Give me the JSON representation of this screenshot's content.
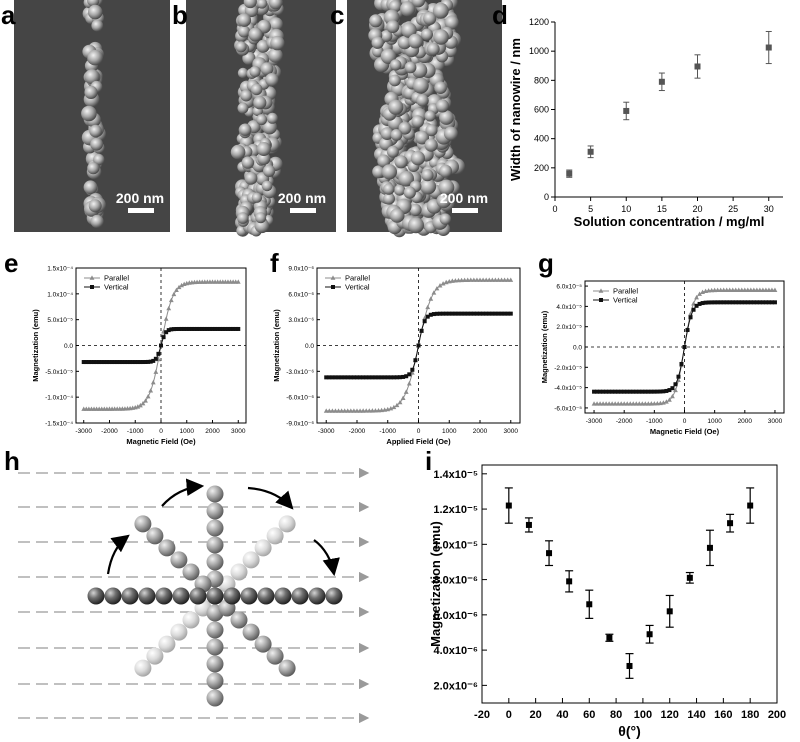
{
  "panels": {
    "a": {
      "label": "a",
      "scale_bar": "200 nm"
    },
    "b": {
      "label": "b",
      "scale_bar": "200 nm"
    },
    "c": {
      "label": "c",
      "scale_bar": "200 nm"
    },
    "h": {
      "label": "h"
    }
  },
  "chart_data": [
    {
      "id": "d",
      "panel_label": "d",
      "type": "scatter",
      "x": [
        2,
        5,
        10,
        15,
        20,
        30
      ],
      "values": [
        160,
        310,
        590,
        790,
        895,
        1025
      ],
      "errors": [
        25,
        40,
        60,
        60,
        80,
        110
      ],
      "xlabel": "Solution concentration / mg/ml",
      "ylabel": "Width of nanowire / nm",
      "xlim": [
        0,
        32
      ],
      "ylim": [
        0,
        1200
      ],
      "xticks": [
        0,
        5,
        10,
        15,
        20,
        25,
        30
      ],
      "yticks": [
        0,
        200,
        400,
        600,
        800,
        1000,
        1200
      ],
      "xtick_labels": [
        "0",
        "5",
        "10",
        "15",
        "20",
        "25",
        "30"
      ],
      "ytick_labels": [
        "0",
        "200",
        "400",
        "600",
        "800",
        "1000",
        "1200"
      ]
    },
    {
      "id": "e",
      "panel_label": "e",
      "type": "line",
      "xlabel": "Magnetic Field (Oe)",
      "ylabel": "Magnetization (emu)",
      "xlim": [
        -3300,
        3300
      ],
      "ylim": [
        -0.00015,
        0.00015
      ],
      "xticks": [
        -3000,
        -2000,
        -1000,
        0,
        1000,
        2000,
        3000
      ],
      "xtick_labels": [
        "-3000",
        "-2000",
        "-1000",
        "0",
        "1000",
        "2000",
        "3000"
      ],
      "yticks": [
        -0.00015,
        -0.0001,
        -5e-05,
        0,
        5e-05,
        0.0001,
        0.00015
      ],
      "ytick_labels": [
        "-1.5x10⁻⁴",
        "-1.0x10⁻⁴",
        "-5.0x10⁻⁵",
        "0.0",
        "5.0x10⁻⁵",
        "1.0x10⁻⁴",
        "1.5x10⁻⁴"
      ],
      "legend": {
        "position": "top-left"
      },
      "series": [
        {
          "name": "Parallel",
          "marker": "triangle",
          "color": "#8c8c8c",
          "ms": 0.000123,
          "h0": 450
        },
        {
          "name": "Vertical",
          "marker": "square",
          "color": "#111111",
          "ms": 3.2e-05,
          "h0": 180
        }
      ]
    },
    {
      "id": "f",
      "panel_label": "f",
      "type": "line",
      "xlabel": "Applied Field (Oe)",
      "ylabel": "Magnetization (emu)",
      "xlim": [
        -3300,
        3300
      ],
      "ylim": [
        -9e-06,
        9e-06
      ],
      "xticks": [
        -3000,
        -2000,
        -1000,
        0,
        1000,
        2000,
        3000
      ],
      "xtick_labels": [
        "-3000",
        "-2000",
        "-1000",
        "0",
        "1000",
        "2000",
        "3000"
      ],
      "yticks": [
        -9e-06,
        -6e-06,
        -3e-06,
        0,
        3e-06,
        6e-06,
        9e-06
      ],
      "ytick_labels": [
        "-9.0x10⁻⁶",
        "-6.0x10⁻⁶",
        "-3.0x10⁻⁶",
        "0.0",
        "3.0x10⁻⁶",
        "6.0x10⁻⁶",
        "9.0x10⁻⁶"
      ],
      "legend": {
        "position": "top-left"
      },
      "series": [
        {
          "name": "Parallel",
          "marker": "triangle",
          "color": "#8c8c8c",
          "ms": 7.6e-06,
          "h0": 450
        },
        {
          "name": "Vertical",
          "marker": "square",
          "color": "#111111",
          "ms": 3.7e-06,
          "h0": 200
        }
      ]
    },
    {
      "id": "g",
      "panel_label": "g",
      "type": "line",
      "xlabel": "Magnetic Field (Oe)",
      "ylabel": "Magnetization (emu)",
      "xlim": [
        -3300,
        3300
      ],
      "ylim": [
        -6.5e-05,
        6.5e-05
      ],
      "xticks": [
        -3000,
        -2000,
        -1000,
        0,
        1000,
        2000,
        3000
      ],
      "xtick_labels": [
        "-3000",
        "-2000",
        "-1000",
        "0",
        "1000",
        "2000",
        "3000"
      ],
      "yticks": [
        -6e-05,
        -4e-05,
        -2e-05,
        0,
        2e-05,
        4e-05,
        6e-05
      ],
      "ytick_labels": [
        "-6.0x10⁻⁵",
        "-4.0x10⁻⁵",
        "-2.0x10⁻⁵",
        "0.0",
        "2.0x10⁻⁵",
        "4.0x10⁻⁵",
        "6.0x10⁻⁵"
      ],
      "legend": {
        "position": "top-left"
      },
      "series": [
        {
          "name": "Parallel",
          "marker": "triangle",
          "color": "#8c8c8c",
          "ms": 5.6e-05,
          "h0": 300
        },
        {
          "name": "Vertical",
          "marker": "square",
          "color": "#111111",
          "ms": 4.4e-05,
          "h0": 250
        }
      ]
    },
    {
      "id": "i",
      "panel_label": "i",
      "type": "scatter",
      "x": [
        0,
        15,
        30,
        45,
        60,
        75,
        90,
        105,
        120,
        135,
        150,
        165,
        180
      ],
      "values": [
        1.22e-05,
        1.11e-05,
        9.5e-06,
        7.9e-06,
        6.6e-06,
        4.7e-06,
        3.1e-06,
        4.9e-06,
        6.2e-06,
        8.1e-06,
        9.8e-06,
        1.12e-05,
        1.22e-05
      ],
      "errors": [
        1e-06,
        4e-07,
        7e-07,
        6e-07,
        8e-07,
        2e-07,
        7e-07,
        5e-07,
        9e-07,
        3e-07,
        1e-06,
        5e-07,
        1e-06
      ],
      "xlabel": "θ(°)",
      "ylabel": "Magnetization (emu)",
      "xlim": [
        -20,
        200
      ],
      "ylim": [
        1e-06,
        1.45e-05
      ],
      "xticks": [
        -20,
        0,
        20,
        40,
        60,
        80,
        100,
        120,
        140,
        160,
        180,
        200
      ],
      "xtick_labels": [
        "-20",
        "0",
        "20",
        "40",
        "60",
        "80",
        "100",
        "120",
        "140",
        "160",
        "180",
        "200"
      ],
      "yticks": [
        2e-06,
        4e-06,
        6e-06,
        8e-06,
        1e-05,
        1.2e-05,
        1.4e-05
      ],
      "ytick_labels": [
        "2.0x10⁻⁶",
        "4.0x10⁻⁶",
        "6.0x10⁻⁶",
        "8.0x10⁻⁶",
        "1.0x10⁻⁵",
        "1.2x10⁻⁵",
        "1.4x10⁻⁵"
      ]
    }
  ]
}
